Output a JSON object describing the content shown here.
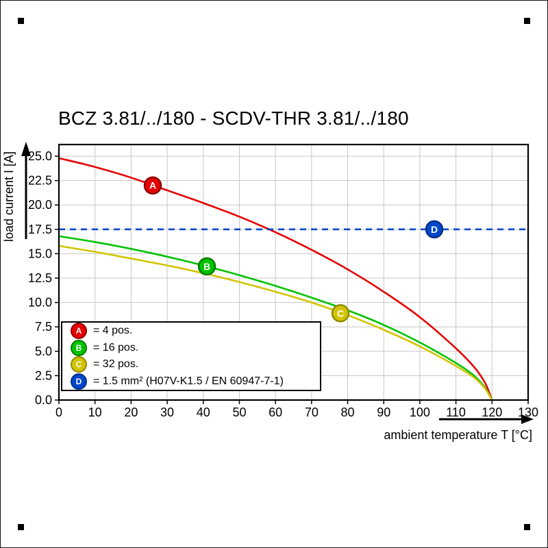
{
  "chart_data": {
    "type": "line",
    "title": "BCZ 3.81/../180 - SCDV-THR 3.81/../180",
    "xlabel": "ambient temperature T [°C]",
    "ylabel": "load current I [A]",
    "xlim": [
      0,
      130
    ],
    "ylim": [
      0,
      25
    ],
    "x_ticks": [
      0,
      10,
      20,
      30,
      40,
      50,
      60,
      70,
      80,
      90,
      100,
      110,
      120,
      130
    ],
    "y_ticks": [
      0.0,
      2.5,
      5.0,
      7.5,
      10.0,
      12.5,
      15.0,
      17.5,
      20.0,
      22.5,
      25.0
    ],
    "grid": true,
    "grid_color": "#c6c6c6",
    "legend_position": "bottom-left",
    "series": [
      {
        "id": "A",
        "label": "= 4 pos.",
        "color": "#e60000",
        "marker_border": "#8b0000",
        "style": "solid",
        "marker_at": {
          "x": 26,
          "y": 22.0
        },
        "points": [
          [
            0,
            24.8
          ],
          [
            10,
            23.9
          ],
          [
            20,
            22.8
          ],
          [
            30,
            21.5
          ],
          [
            40,
            20.2
          ],
          [
            50,
            18.8
          ],
          [
            60,
            17.2
          ],
          [
            70,
            15.4
          ],
          [
            80,
            13.4
          ],
          [
            90,
            11.1
          ],
          [
            100,
            8.5
          ],
          [
            110,
            5.3
          ],
          [
            115,
            3.4
          ],
          [
            118,
            1.8
          ],
          [
            120,
            0
          ]
        ]
      },
      {
        "id": "B",
        "label": "= 16 pos.",
        "color": "#00c300",
        "marker_border": "#007a00",
        "style": "solid",
        "marker_at": {
          "x": 41,
          "y": 13.7
        },
        "points": [
          [
            0,
            16.8
          ],
          [
            10,
            16.2
          ],
          [
            20,
            15.5
          ],
          [
            30,
            14.7
          ],
          [
            40,
            13.8
          ],
          [
            50,
            12.8
          ],
          [
            60,
            11.7
          ],
          [
            70,
            10.5
          ],
          [
            80,
            9.2
          ],
          [
            90,
            7.7
          ],
          [
            100,
            5.9
          ],
          [
            110,
            3.8
          ],
          [
            115,
            2.5
          ],
          [
            118,
            1.3
          ],
          [
            120,
            0
          ]
        ]
      },
      {
        "id": "C",
        "label": "= 32 pos.",
        "color": "#d2c400",
        "marker_border": "#938a00",
        "style": "solid",
        "marker_at": {
          "x": 78,
          "y": 8.9
        },
        "points": [
          [
            0,
            15.8
          ],
          [
            10,
            15.2
          ],
          [
            20,
            14.5
          ],
          [
            30,
            13.8
          ],
          [
            40,
            13.0
          ],
          [
            50,
            12.1
          ],
          [
            60,
            11.1
          ],
          [
            70,
            10.0
          ],
          [
            80,
            8.7
          ],
          [
            90,
            7.2
          ],
          [
            100,
            5.5
          ],
          [
            110,
            3.5
          ],
          [
            115,
            2.3
          ],
          [
            118,
            1.2
          ],
          [
            120,
            0
          ]
        ]
      },
      {
        "id": "D",
        "label": "= 1.5 mm² (H07V-K1.5 / EN 60947-7-1)",
        "color": "#0047cc",
        "marker_border": "#002f86",
        "style": "dashed",
        "marker_at": {
          "x": 104,
          "y": 17.5
        },
        "points": [
          [
            0,
            17.5
          ],
          [
            130,
            17.5
          ]
        ]
      }
    ]
  }
}
